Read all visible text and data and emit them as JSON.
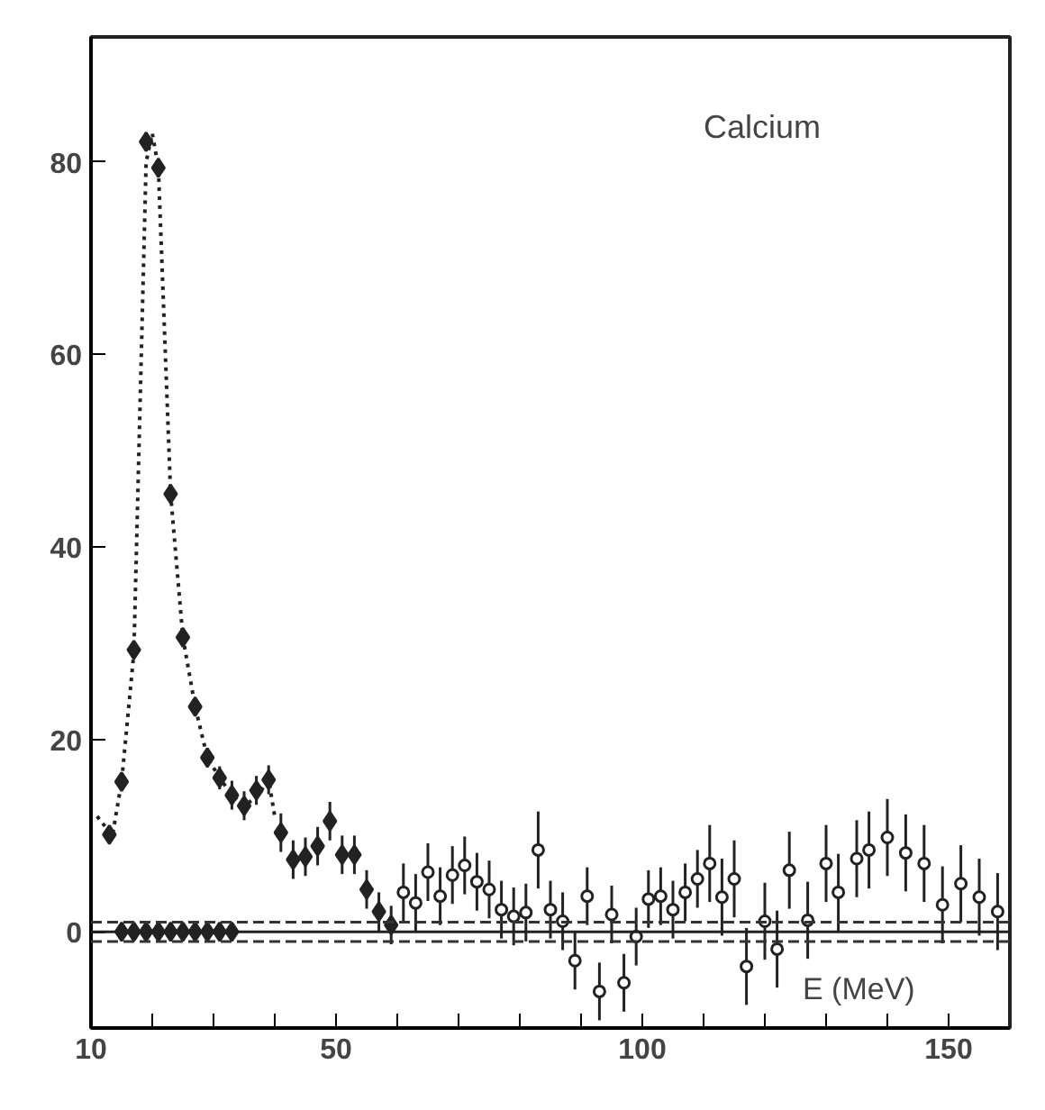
{
  "chart_data": {
    "type": "scatter",
    "xlabel": "E (MeV)",
    "annotations": [
      "Calcium"
    ],
    "xlim": [
      10,
      160
    ],
    "ylim": [
      -10,
      93
    ],
    "xticks": [
      10,
      {
        "value": 20,
        "label": null
      },
      {
        "value": 30,
        "label": null
      },
      {
        "value": 40,
        "label": null
      },
      50,
      {
        "value": 60,
        "label": null
      },
      {
        "value": 70,
        "label": null
      },
      {
        "value": 80,
        "label": null
      },
      {
        "value": 90,
        "label": null
      },
      100,
      {
        "value": 110,
        "label": null
      },
      {
        "value": 120,
        "label": null
      },
      {
        "value": 130,
        "label": null
      },
      {
        "value": 140,
        "label": null
      },
      150
    ],
    "yticks": [
      0,
      20,
      40,
      60,
      80
    ],
    "grid": false,
    "series": [
      {
        "type": "line",
        "line_style": "dotted",
        "color": "#222222",
        "x": [
          11,
          13.5,
          15,
          17,
          19,
          20,
          21,
          23,
          25,
          27,
          29,
          31,
          33,
          35,
          37,
          39,
          40
        ],
        "values": [
          12,
          10,
          15.6,
          29,
          80,
          83,
          79.4,
          45.5,
          30.6,
          23.4,
          18.1,
          16,
          14.2,
          13.1,
          14,
          15.8,
          12
        ]
      },
      {
        "marker": "diamond",
        "color": "#222222",
        "x": [
          15,
          17,
          19,
          21,
          23,
          25,
          27,
          29,
          31,
          33
        ],
        "values": [
          0,
          0,
          0,
          0,
          0,
          0,
          0,
          0,
          0,
          0
        ]
      },
      {
        "marker": "diamond",
        "color": "#222222",
        "x": [
          13,
          15,
          17,
          19,
          21,
          23,
          25,
          27,
          29,
          31,
          33,
          35,
          37,
          39,
          41,
          43,
          45,
          47,
          49,
          51,
          53,
          55,
          57,
          59
        ],
        "values": [
          10.1,
          15.6,
          29.3,
          82.1,
          79.4,
          45.5,
          30.6,
          23.4,
          18.1,
          16.0,
          14.2,
          13.1,
          14.7,
          15.8,
          10.3,
          7.5,
          7.8,
          8.9,
          11.5,
          8.0,
          8.0,
          4.4,
          2.1,
          0.7
        ],
        "errors": [
          0.5,
          0.8,
          0.8,
          1,
          1,
          1,
          1,
          1,
          1,
          1.2,
          1.5,
          1.5,
          1.5,
          1.5,
          2,
          2,
          2,
          2,
          2,
          2,
          2,
          2,
          2,
          2
        ]
      },
      {
        "marker": "circle",
        "color": "#222222",
        "x": [
          61,
          63,
          65,
          67,
          69,
          71,
          73,
          75,
          77,
          79,
          81,
          83,
          85,
          87,
          89,
          91,
          93,
          95,
          97,
          99,
          101,
          103,
          105,
          107,
          109,
          111,
          113,
          115,
          117,
          120,
          122,
          124,
          127,
          130,
          132,
          135,
          137,
          140,
          143,
          146,
          149,
          152,
          155,
          158
        ],
        "values": [
          4.1,
          3.0,
          6.2,
          3.7,
          5.9,
          6.9,
          5.2,
          4.4,
          2.3,
          1.6,
          2.0,
          8.5,
          2.3,
          1.1,
          -3.0,
          3.7,
          -6.2,
          1.8,
          -5.3,
          -0.5,
          3.4,
          3.7,
          2.3,
          4.1,
          5.5,
          7.1,
          3.6,
          5.5,
          -3.6,
          1.1,
          -1.8,
          6.4,
          1.2,
          7.1,
          4.1,
          7.6,
          8.5,
          9.8,
          8.2,
          7.1,
          2.8,
          5.0,
          3.6,
          2.1
        ],
        "errors": [
          3,
          3,
          3,
          3,
          3,
          3,
          3,
          3,
          3,
          3,
          3,
          4,
          3,
          3,
          3,
          3,
          3,
          3,
          3,
          3,
          3,
          3,
          3,
          3,
          3,
          4,
          4,
          4,
          4,
          4,
          4,
          4,
          4,
          4,
          4,
          4,
          4,
          4,
          4,
          4,
          4,
          4,
          4,
          4
        ]
      }
    ],
    "ref_lines": [
      {
        "axis": "y",
        "value": 0,
        "line_style": "solid",
        "color": "#222222"
      },
      {
        "axis": "y",
        "value": 1,
        "line_style": "dashed",
        "color": "#333333"
      },
      {
        "axis": "y",
        "value": -1,
        "line_style": "dashed",
        "color": "#333333"
      }
    ]
  }
}
